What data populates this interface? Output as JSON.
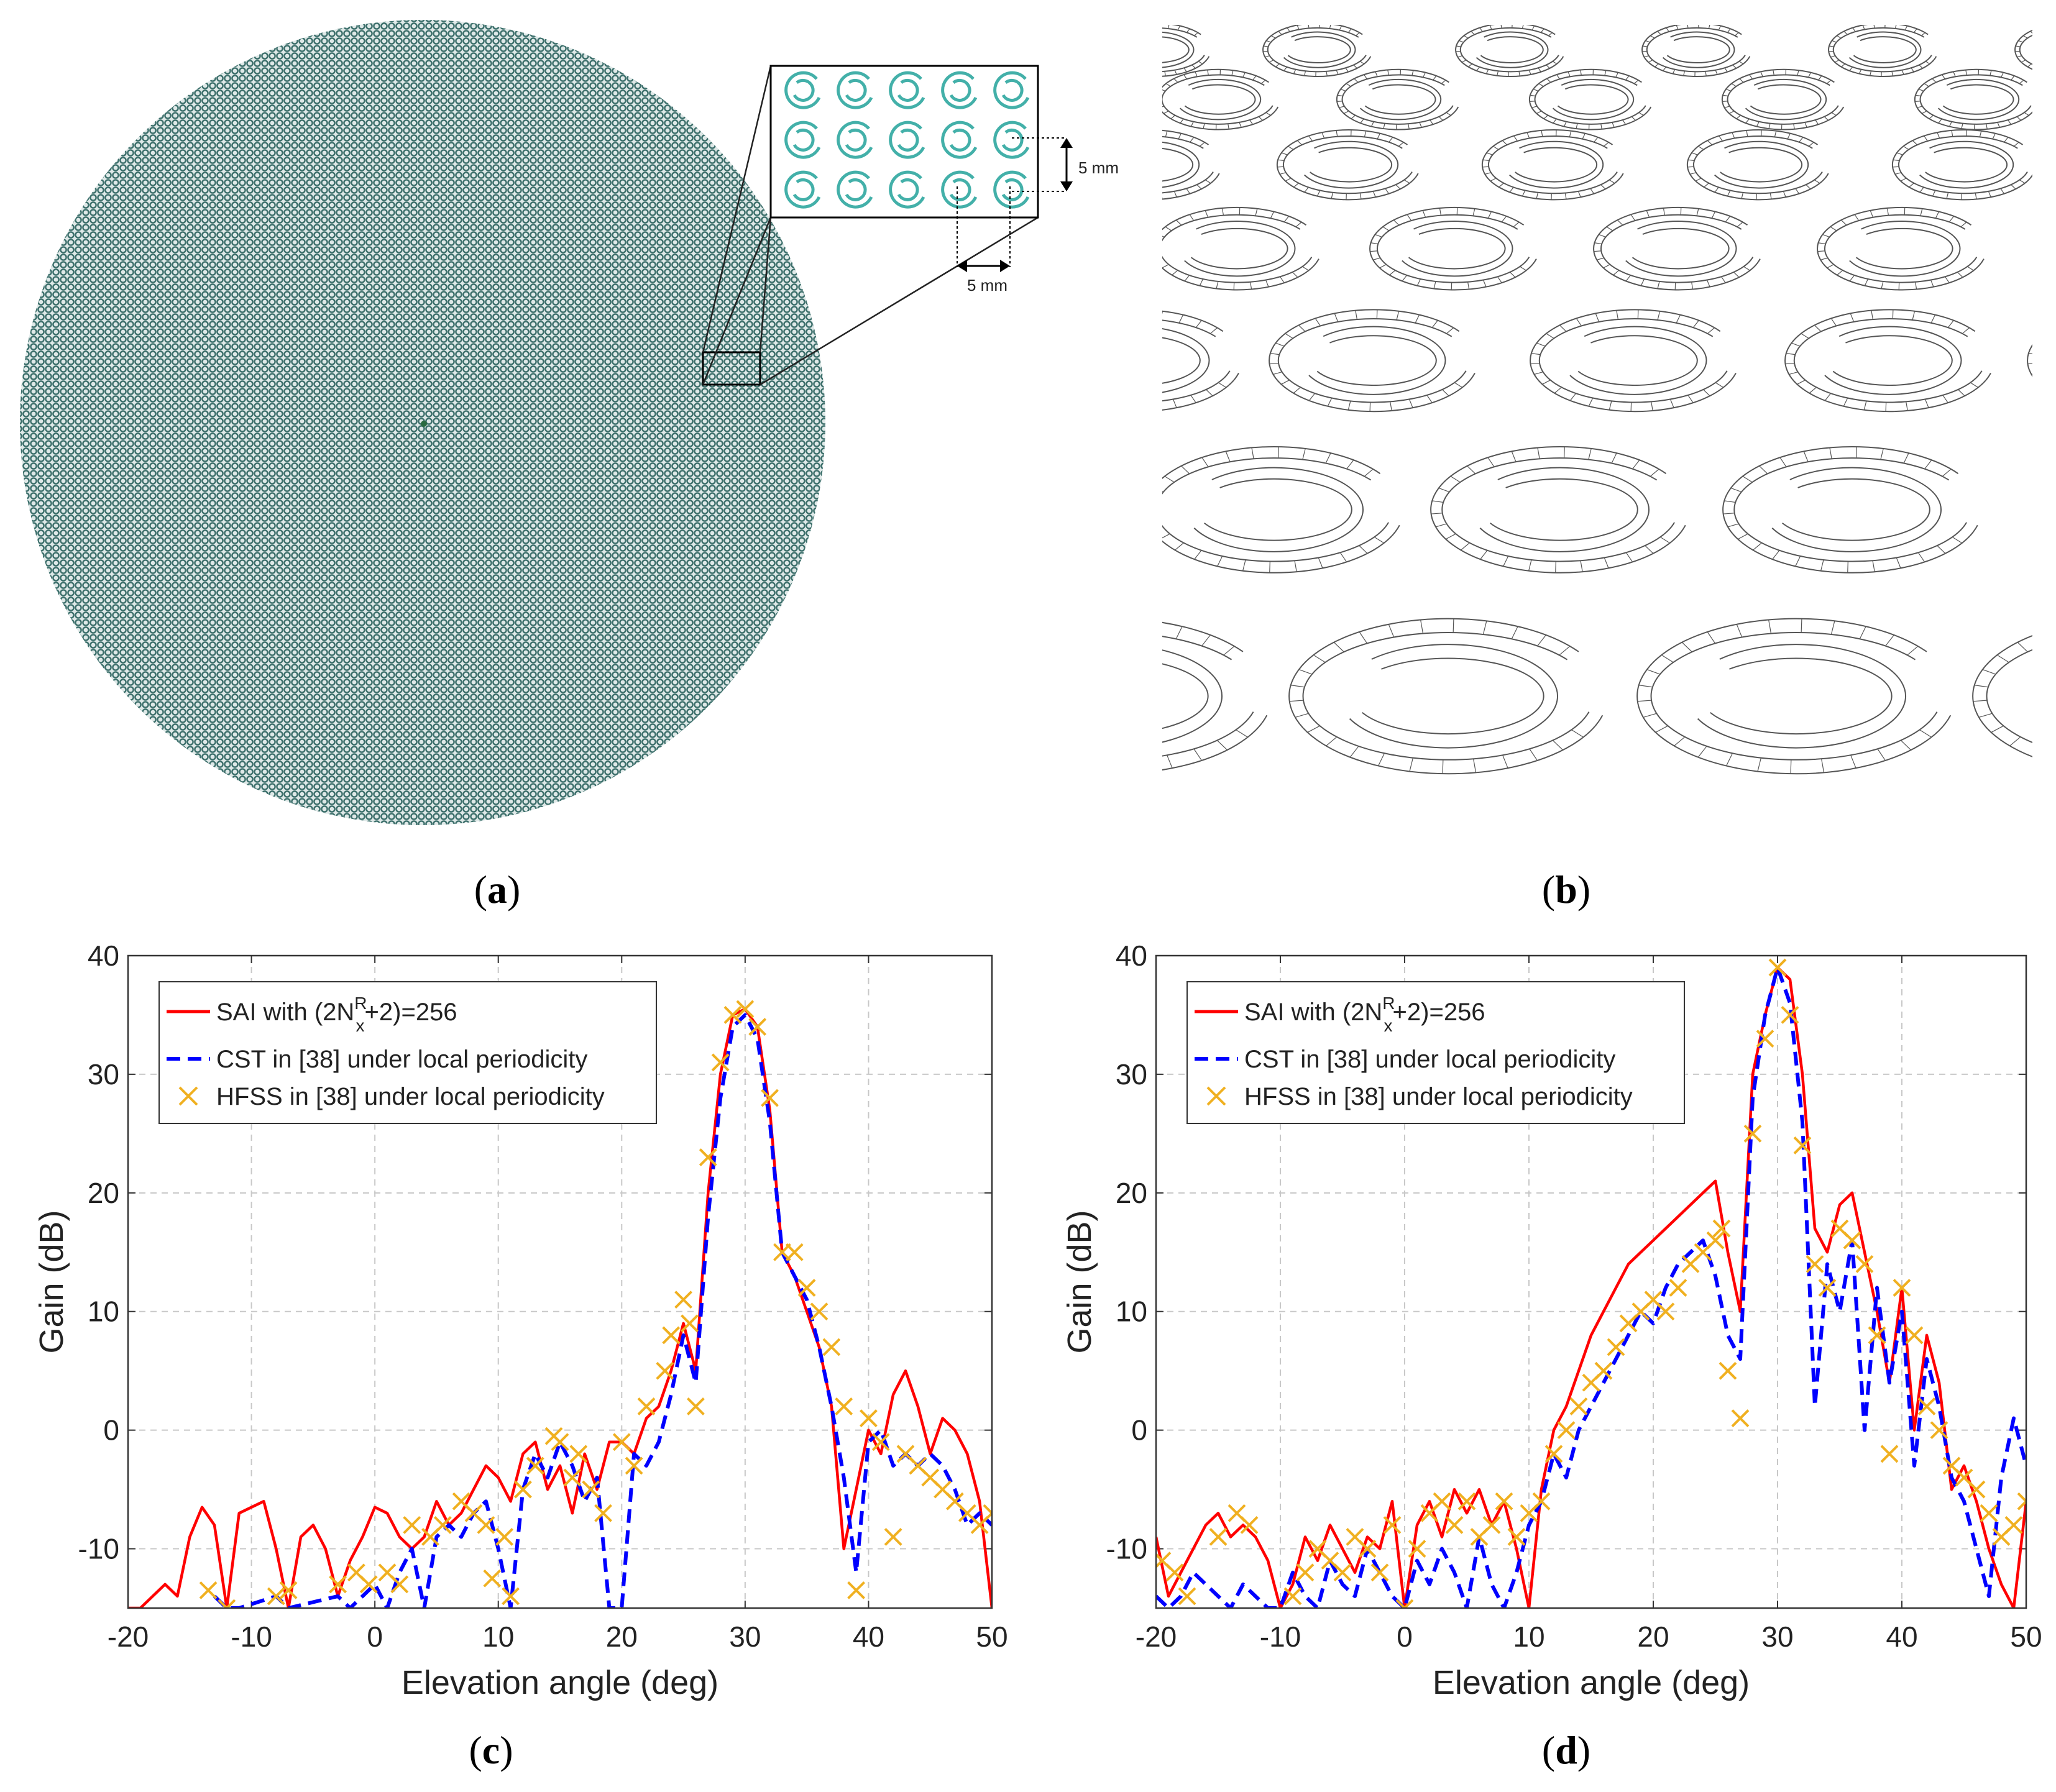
{
  "captions": {
    "a": "a",
    "b": "b",
    "c": "c",
    "d": "d"
  },
  "panel_a": {
    "array_color": "#4f7f7c",
    "inset_ring_color": "#43b0a9",
    "inset_rows": 3,
    "inset_cols": 5,
    "dim_vertical_label": "5 mm",
    "dim_horizontal_label": "5 mm"
  },
  "panel_b": {
    "ring_stroke": "#555555"
  },
  "chart_data": [
    {
      "type": "line",
      "panel": "c",
      "title": "",
      "xlabel": "Elevation angle (deg)",
      "ylabel": "Gain (dB)",
      "xlim": [
        -20,
        50
      ],
      "ylim": [
        -15,
        40
      ],
      "xticks": [
        -20,
        -10,
        0,
        10,
        20,
        30,
        40,
        50
      ],
      "yticks": [
        -10,
        0,
        10,
        20,
        30,
        40
      ],
      "grid": true,
      "legend_position": "top-left",
      "legend": {
        "sai_prefix": "SAI with (2N",
        "sai_sup": "R",
        "sai_sub": "x",
        "sai_suffix": "+2)=256",
        "cst": "CST in [38] under local periodicity",
        "hfss": "HFSS in [38] under local periodicity"
      },
      "colors": {
        "sai": "#ff0000",
        "cst": "#0000ff",
        "hfss": "#f0b020"
      },
      "series": [
        {
          "name": "SAI",
          "style": "solid",
          "x": [
            -20,
            -19,
            -18,
            -17,
            -16,
            -15,
            -14,
            -13,
            -12,
            -11,
            -10,
            -9,
            -8,
            -7,
            -6,
            -5,
            -4,
            -3,
            -2,
            -1,
            0,
            1,
            2,
            3,
            4,
            5,
            6,
            7,
            8,
            9,
            10,
            11,
            12,
            13,
            14,
            15,
            16,
            17,
            18,
            19,
            20,
            21,
            22,
            23,
            24,
            25,
            26,
            27,
            28,
            29,
            30,
            31,
            32,
            33,
            34,
            35,
            36,
            37,
            38,
            39,
            40,
            41,
            42,
            43,
            44,
            45,
            46,
            47,
            48,
            49,
            50
          ],
          "y": [
            -15,
            -15,
            -14,
            -13,
            -14,
            -9,
            -6.5,
            -8,
            -15,
            -7,
            -6.5,
            -6,
            -10,
            -15,
            -9,
            -8,
            -10,
            -14,
            -11,
            -9,
            -6.5,
            -7,
            -9,
            -10,
            -9,
            -6,
            -8,
            -7,
            -5,
            -3,
            -4,
            -6,
            -2,
            -1,
            -5,
            -3,
            -7,
            -2,
            -5,
            -1,
            -1,
            -2,
            1,
            2,
            5,
            9,
            5,
            20,
            30,
            35,
            35.5,
            34,
            27,
            15,
            13,
            10,
            7,
            2,
            -10,
            -5,
            0,
            -2,
            3,
            5,
            2,
            -2,
            1,
            0,
            -2,
            -6,
            -15
          ]
        },
        {
          "name": "CST",
          "style": "dashed",
          "x": [
            -13,
            -12,
            -11,
            -8,
            -7,
            -3,
            -2,
            -1,
            0,
            1,
            2,
            3,
            4,
            5,
            6,
            7,
            8,
            9,
            10,
            11,
            12,
            13,
            14,
            15,
            16,
            17,
            18,
            19,
            20,
            21,
            22,
            23,
            24,
            25,
            26,
            27,
            28,
            29,
            30,
            31,
            32,
            33,
            34,
            35,
            36,
            37,
            38,
            39,
            40,
            41,
            42,
            43,
            44,
            45,
            46,
            47,
            48,
            49,
            50
          ],
          "y": [
            -14,
            -15,
            -15,
            -14,
            -15,
            -14,
            -15,
            -14,
            -13,
            -15,
            -12,
            -10,
            -15,
            -9,
            -8,
            -9,
            -7,
            -6,
            -10,
            -15,
            -5,
            -2,
            -4,
            -1,
            -3,
            -6,
            -4,
            -15,
            -15,
            -2,
            -3,
            -1,
            3,
            8,
            4,
            18,
            28,
            34,
            35,
            33,
            26,
            15,
            13,
            11,
            7,
            2,
            -4,
            -12,
            -1,
            0,
            -3,
            -2,
            -3,
            -2,
            -3,
            -5,
            -8,
            -7,
            -8
          ]
        },
        {
          "name": "HFSS",
          "style": "markers",
          "x": [
            -13.5,
            -12,
            -8,
            -7,
            -3,
            -1.5,
            -0.5,
            1,
            2,
            3,
            4.5,
            5.5,
            7,
            8,
            9,
            9.5,
            10.5,
            11,
            12,
            13,
            14.5,
            15,
            16,
            16.5,
            17.5,
            18.5,
            20,
            21,
            22,
            23.5,
            24,
            25,
            25.5,
            26,
            27,
            28,
            29,
            30,
            31,
            32,
            33,
            34,
            35,
            36,
            37,
            38,
            39,
            40,
            41,
            42,
            43,
            44,
            45,
            46,
            47,
            48,
            49,
            50
          ],
          "y": [
            -13.5,
            -15,
            -14,
            -13.5,
            -13,
            -12,
            -13,
            -12,
            -13,
            -8,
            -9,
            -8,
            -6,
            -7,
            -8,
            -12.5,
            -9,
            -14,
            -5,
            -3,
            -0.5,
            -1,
            -4,
            -2,
            -5,
            -7,
            -1,
            -3,
            2,
            5,
            8,
            11,
            9,
            2,
            23,
            31,
            35,
            35.5,
            34,
            28,
            15,
            15,
            12,
            10,
            7,
            2,
            -13.5,
            1,
            -1,
            -9,
            -2,
            -3,
            -4,
            -5,
            -6,
            -7,
            -8,
            -7
          ]
        }
      ]
    },
    {
      "type": "line",
      "panel": "d",
      "title": "",
      "xlabel": "Elevation angle (deg)",
      "ylabel": "Gain (dB)",
      "xlim": [
        -20,
        50
      ],
      "ylim": [
        -15,
        40
      ],
      "xticks": [
        -20,
        -10,
        0,
        10,
        20,
        30,
        40,
        50
      ],
      "yticks": [
        -10,
        0,
        10,
        20,
        30,
        40
      ],
      "grid": true,
      "legend_position": "top-left",
      "legend": {
        "sai_prefix": "SAI with (2N",
        "sai_sup": "R",
        "sai_sub": "x",
        "sai_suffix": "+2)=256",
        "cst": "CST in [38] under local periodicity",
        "hfss": "HFSS in [38] under local periodicity"
      },
      "colors": {
        "sai": "#ff0000",
        "cst": "#0000ff",
        "hfss": "#f0b020"
      },
      "series": [
        {
          "name": "SAI",
          "style": "solid",
          "x": [
            -20,
            -19,
            -18,
            -17,
            -16,
            -15,
            -14,
            -13,
            -12,
            -11,
            -10,
            -9,
            -8,
            -7,
            -6,
            -5,
            -4,
            -3,
            -2,
            -1,
            0,
            1,
            2,
            3,
            4,
            5,
            6,
            7,
            8,
            9,
            10,
            11,
            12,
            13,
            14,
            15,
            16,
            17,
            18,
            19,
            20,
            21,
            22,
            23,
            24,
            25,
            26,
            27,
            28,
            29,
            30,
            31,
            32,
            33,
            34,
            35,
            36,
            37,
            38,
            39,
            40,
            41,
            42,
            43,
            44,
            45,
            46,
            47,
            48,
            49,
            50
          ],
          "y": [
            -9,
            -14,
            -12,
            -10,
            -8,
            -7,
            -9,
            -8,
            -9,
            -11,
            -15,
            -13,
            -9,
            -11,
            -8,
            -10,
            -12,
            -9,
            -10,
            -6,
            -15,
            -8,
            -6,
            -9,
            -5,
            -7,
            -5,
            -8,
            -6,
            -10,
            -15,
            -5,
            0,
            2,
            5,
            8,
            10,
            12,
            14,
            15,
            16,
            17,
            18,
            19,
            20,
            21,
            15,
            10,
            30,
            35,
            39,
            38,
            30,
            17,
            15,
            19,
            20,
            15,
            10,
            4,
            12,
            0,
            8,
            4,
            -5,
            -3,
            -6,
            -10,
            -13,
            -15,
            -6
          ]
        },
        {
          "name": "CST",
          "style": "dashed",
          "x": [
            -20,
            -19,
            -18,
            -17,
            -16,
            -15,
            -14,
            -13,
            -12,
            -11,
            -10,
            -9,
            -8,
            -7,
            -6,
            -5,
            -4,
            -3,
            -2,
            -1,
            0,
            1,
            2,
            3,
            4,
            5,
            6,
            7,
            8,
            9,
            10,
            11,
            12,
            13,
            14,
            15,
            16,
            17,
            18,
            19,
            20,
            21,
            22,
            23,
            24,
            25,
            26,
            27,
            28,
            29,
            30,
            31,
            32,
            33,
            34,
            35,
            36,
            37,
            38,
            39,
            40,
            41,
            42,
            43,
            44,
            45,
            46,
            47,
            48,
            49,
            50
          ],
          "y": [
            -14,
            -15,
            -14,
            -12,
            -13,
            -14,
            -15,
            -13,
            -14,
            -15,
            -15,
            -12,
            -14,
            -15,
            -11,
            -13,
            -14,
            -10,
            -12,
            -14,
            -15,
            -11,
            -13,
            -10,
            -12,
            -15,
            -9,
            -13,
            -15,
            -12,
            -8,
            -6,
            -2,
            -4,
            0,
            2,
            4,
            6,
            8,
            10,
            9,
            12,
            14,
            15,
            16,
            13,
            8,
            6,
            28,
            35,
            39,
            36,
            26,
            2,
            14,
            10,
            16,
            0,
            12,
            4,
            10,
            -3,
            6,
            2,
            -4,
            -6,
            -10,
            -14,
            -4,
            1,
            -3
          ]
        },
        {
          "name": "HFSS",
          "style": "markers",
          "x": [
            -19.5,
            -18.5,
            -17.5,
            -15,
            -13.5,
            -12.5,
            -9,
            -8,
            -7,
            -6,
            -5,
            -4,
            -3,
            -2,
            -1,
            0,
            1,
            2,
            3,
            4,
            5,
            6,
            7,
            8,
            9,
            10,
            11,
            12,
            13,
            14,
            15,
            16,
            17,
            18,
            19,
            20,
            21,
            22,
            23,
            24,
            25,
            25.5,
            26,
            27,
            28,
            29,
            30,
            31,
            32,
            33,
            34,
            35,
            36,
            37,
            38,
            39,
            40,
            41,
            42,
            43,
            44,
            45,
            46,
            47,
            48,
            49,
            50
          ],
          "y": [
            -11,
            -12,
            -14,
            -9,
            -7,
            -8,
            -14,
            -12,
            -10,
            -11,
            -12,
            -9,
            -10,
            -12,
            -8,
            -15,
            -10,
            -7,
            -6,
            -8,
            -6,
            -9,
            -8,
            -6,
            -9,
            -7,
            -6,
            -2,
            0,
            2,
            4,
            5,
            7,
            9,
            10,
            11,
            10,
            12,
            14,
            15,
            16,
            17,
            5,
            1,
            25,
            33,
            39,
            35,
            24,
            14,
            12,
            17,
            16,
            14,
            8,
            -2,
            12,
            8,
            2,
            0,
            -3,
            -4,
            -5,
            -7,
            -9,
            -8,
            -6
          ]
        }
      ]
    }
  ]
}
